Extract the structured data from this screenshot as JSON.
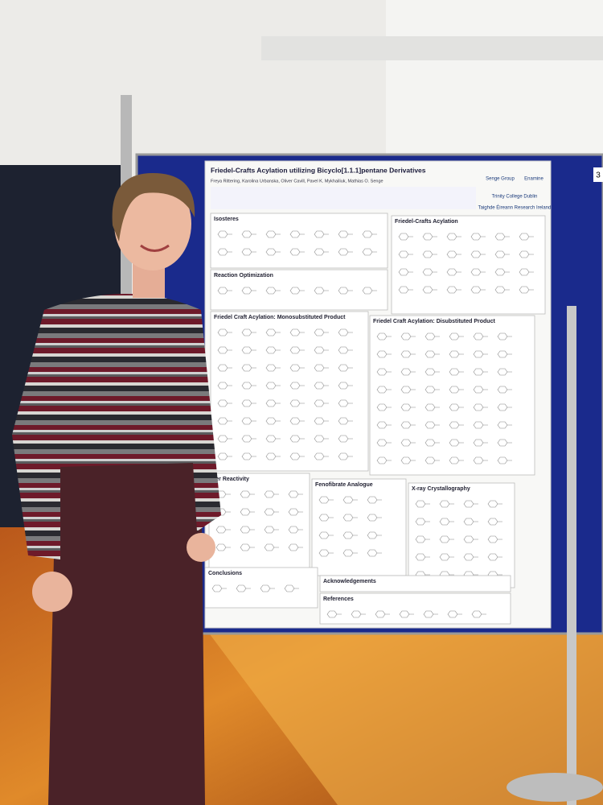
{
  "poster": {
    "title": "Friedel-Crafts Acylation utilizing Bicyclo[1.1.1]pentane Derivatives",
    "authors": "Freya Rittering, Karolina Urbanska, Oliver Cavill, Pavel K. Mykhailiuk, Mathias O. Senge",
    "sections": [
      "Isosteres",
      "Friedel-Crafts Acylation",
      "Reaction Optimization",
      "Friedel Craft Acylation: Monosubstituted Product",
      "Friedel Craft Acylation: Disubstituted Product",
      "ner Reactivity",
      "Fenofibrate Analogue",
      "X-ray Crystallography",
      "Conclusions",
      "Acknowledgements",
      "References"
    ],
    "logos": [
      "Senge Group",
      "Enamine",
      "Trinity College Dublin",
      "Taighde Éireann Research Ireland"
    ]
  },
  "board_number": "3"
}
